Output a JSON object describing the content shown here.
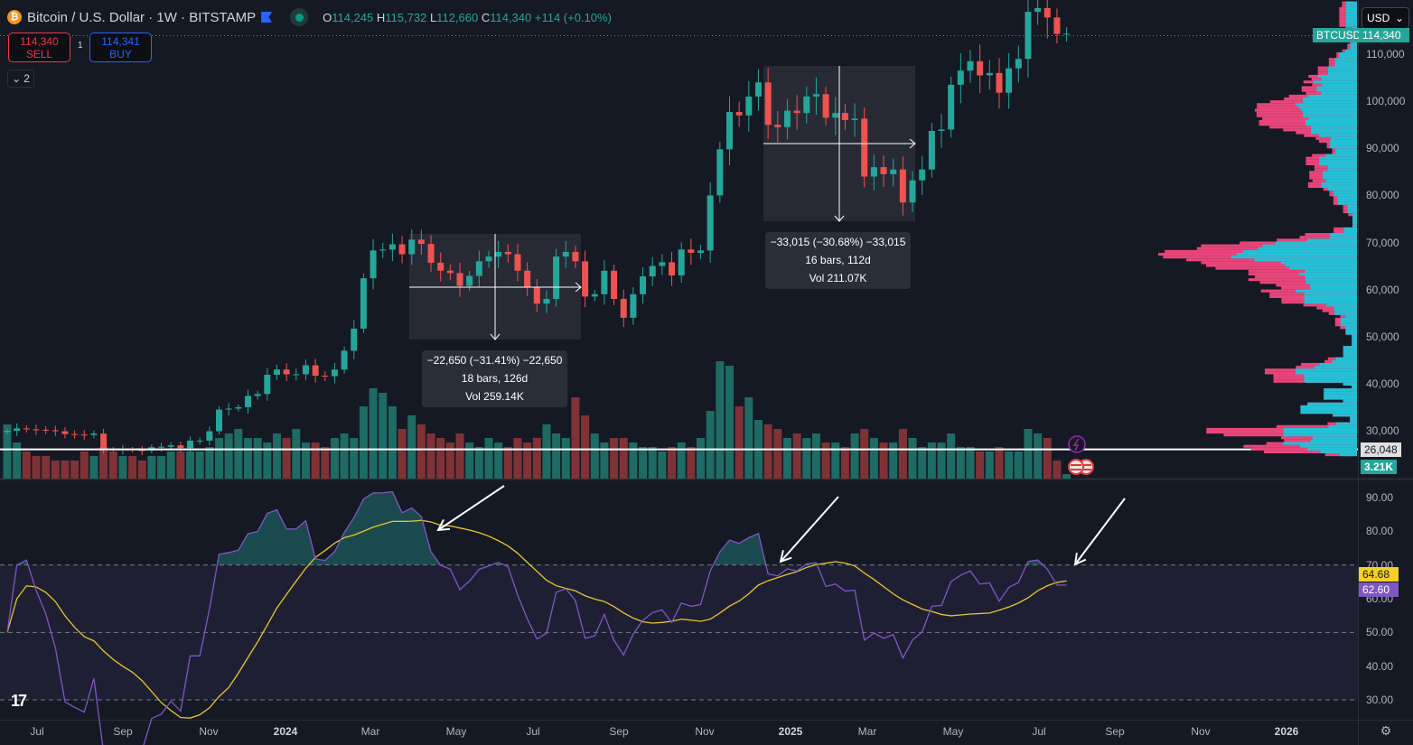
{
  "header": {
    "coin_glyph": "₿",
    "symbol": "Bitcoin / U.S. Dollar · 1W · BITSTAMP",
    "o_label": "O",
    "o": "114,245",
    "h_label": "H",
    "h": "115,732",
    "l_label": "L",
    "l": "112,660",
    "c_label": "C",
    "c": "114,340",
    "change": "+114 (+0.10%)"
  },
  "trade": {
    "sell_price": "114,340",
    "sell_label": "SELL",
    "qty": "1",
    "buy_price": "114,341",
    "buy_label": "BUY"
  },
  "indicators_toggle": {
    "count": "2"
  },
  "currency": "USD",
  "price_axis": {
    "labels": [
      "110,000",
      "100,000",
      "90,000",
      "80,000",
      "70,000",
      "60,000",
      "50,000",
      "40,000",
      "30,000"
    ],
    "symbol_tag": "BTCUSD",
    "current_price": "114,340",
    "hline_price": "26,048",
    "volume_tag": "3.21K"
  },
  "rsi_axis": {
    "labels": [
      "90.00",
      "80.00",
      "70.00",
      "60.00",
      "50.00",
      "40.00",
      "30.00"
    ],
    "ma_value": "64.68",
    "rsi_value": "62.60"
  },
  "time_axis": [
    "Jul",
    "Sep",
    "Nov",
    "2024",
    "Mar",
    "May",
    "Jul",
    "Sep",
    "Nov",
    "2025",
    "Mar",
    "May",
    "Jul",
    "Sep",
    "Nov",
    "2026"
  ],
  "measure_1": {
    "line1": "−22,650 (−31.41%) −22,650",
    "line2": "18 bars, 126d",
    "line3": "Vol 259.14K"
  },
  "measure_2": {
    "line1": "−33,015 (−30.68%) −33,015",
    "line2": "16 bars, 112d",
    "line3": "Vol 211.07K"
  },
  "colors": {
    "up": "#26a69a",
    "down": "#ef5350",
    "vol_up": "#1d6b64",
    "vol_down": "#7f3236",
    "rsi": "#7e57c2",
    "rsi_ma": "#e5c62b",
    "vp_up": "#22c1d6",
    "vp_down": "#e8457a"
  },
  "chart_data": {
    "type": "candlestick",
    "timeframe": "1W",
    "hline": 26048,
    "closes": [
      30000,
      30500,
      30300,
      30200,
      30100,
      29900,
      29300,
      29200,
      29100,
      29400,
      26100,
      26000,
      26100,
      25900,
      25800,
      26500,
      26600,
      26900,
      26300,
      27900,
      27900,
      29900,
      34500,
      34700,
      35000,
      37400,
      37800,
      41900,
      43000,
      42000,
      42000,
      43900,
      41700,
      41600,
      43000,
      47000,
      51700,
      62400,
      68300,
      68500,
      69600,
      67500,
      70600,
      69700,
      65700,
      64000,
      63500,
      60800,
      62900,
      66000,
      67000,
      68000,
      67500,
      64000,
      60500,
      57000,
      58000,
      67000,
      68000,
      66000,
      58500,
      59000,
      64000,
      58000,
      54000,
      59000,
      62800,
      65000,
      65800,
      63000,
      68500,
      67800,
      68300,
      80000,
      89800,
      97700,
      97000,
      101000,
      104000,
      95000,
      94500,
      98000,
      97500,
      101000,
      101500,
      96500,
      97500,
      96000,
      96300,
      84000,
      86000,
      84500,
      85500,
      78500,
      83200,
      85500,
      93700,
      94000,
      103500,
      106500,
      108500,
      105500,
      106000,
      101800,
      107000,
      109000,
      119000,
      119800,
      117800,
      114300,
      114340
    ],
    "volume_k": [
      60,
      40,
      30,
      25,
      25,
      20,
      20,
      20,
      30,
      25,
      35,
      30,
      25,
      25,
      20,
      25,
      25,
      30,
      30,
      30,
      30,
      35,
      45,
      50,
      55,
      45,
      45,
      40,
      50,
      45,
      55,
      40,
      40,
      35,
      45,
      50,
      45,
      80,
      100,
      95,
      80,
      55,
      70,
      60,
      50,
      45,
      40,
      50,
      40,
      35,
      45,
      40,
      35,
      45,
      40,
      45,
      60,
      50,
      45,
      90,
      70,
      50,
      40,
      45,
      45,
      40,
      35,
      35,
      30,
      35,
      40,
      35,
      45,
      75,
      130,
      125,
      80,
      90,
      65,
      60,
      55,
      45,
      50,
      45,
      50,
      40,
      40,
      35,
      50,
      55,
      45,
      40,
      40,
      55,
      45,
      35,
      40,
      40,
      50,
      35,
      35,
      30,
      30,
      35,
      30,
      30,
      55,
      50,
      45,
      20,
      5
    ],
    "rsi_period": 14,
    "rsi_ma_period": 14,
    "rsi_levels": [
      70,
      50,
      30
    ]
  }
}
